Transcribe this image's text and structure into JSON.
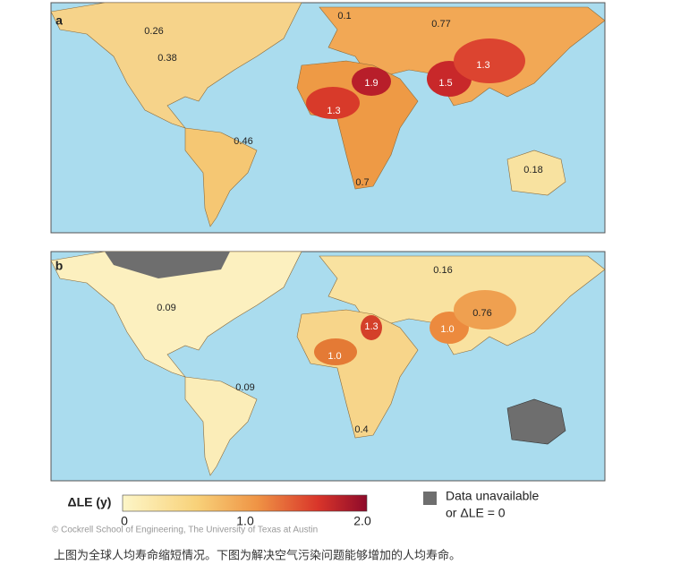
{
  "panels": [
    {
      "label": "a",
      "annotations": [
        "0.1",
        "0.77",
        "0.26",
        "0.38",
        "1.9",
        "1.3",
        "1.5",
        "1.3",
        "0.46",
        "0.7",
        "0.18"
      ]
    },
    {
      "label": "b",
      "annotations": [
        "0.16",
        "0.09",
        "1.3",
        "0.76",
        "1.0",
        "1.0",
        "0.09",
        "0.4"
      ]
    }
  ],
  "legend": {
    "title": "ΔLE (y)",
    "ticks": [
      "0",
      "1.0",
      "2.0"
    ],
    "unavailable": [
      "Data unavailable",
      "or ΔLE = 0"
    ]
  },
  "credit": "© Cockrell School of Engineering, The University of Texas at Austin",
  "caption": "上图为全球人均寿命缩短情况。下图为解决空气污染问题能够增加的人均寿命。"
}
